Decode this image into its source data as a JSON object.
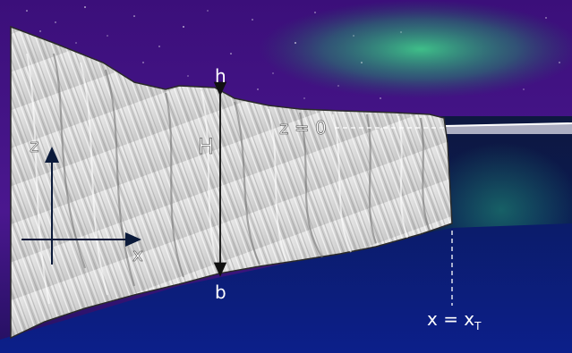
{
  "labels": {
    "h": "h",
    "H": "H",
    "b": "b",
    "z0": "z = 0",
    "axis_z": "z",
    "axis_x": "x",
    "xT_main": "x = x",
    "xT_sub": "T"
  },
  "colors": {
    "ocean": "#0c1a7e",
    "sky": "#4a148c",
    "aurora": "#2bb673",
    "ice": "#dcdcdc",
    "axis": "#0b1a3a",
    "guide": "#ffffff"
  }
}
